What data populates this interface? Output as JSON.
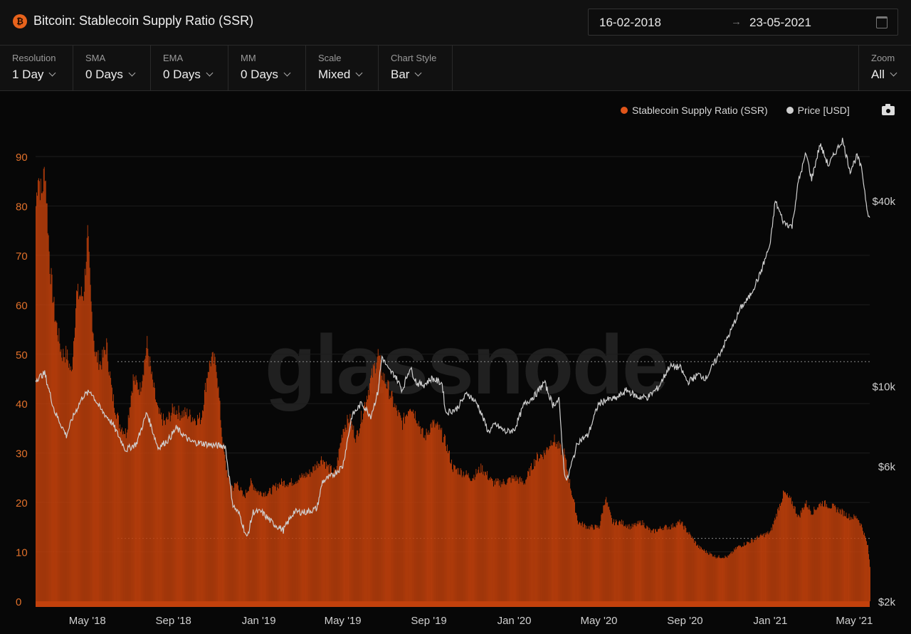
{
  "header": {
    "title": "Bitcoin: Stablecoin Supply Ratio (SSR)",
    "asset_icon": "bitcoin-icon",
    "date_from": "16-02-2018",
    "date_to": "23-05-2021"
  },
  "controls": [
    {
      "label": "Resolution",
      "value": "1 Day"
    },
    {
      "label": "SMA",
      "value": "0 Days"
    },
    {
      "label": "EMA",
      "value": "0 Days"
    },
    {
      "label": "MM",
      "value": "0 Days"
    },
    {
      "label": "Scale",
      "value": "Mixed"
    },
    {
      "label": "Chart Style",
      "value": "Bar"
    }
  ],
  "zoom": {
    "label": "Zoom",
    "value": "All"
  },
  "legend": {
    "ssr": "Stablecoin Supply Ratio (SSR)",
    "price": "Price [USD]"
  },
  "watermark": "glassnode",
  "colors": {
    "ssr": "#c2410c",
    "ssr_legend": "#e0551a",
    "price": "#cfcfcf",
    "left_axis": "#e0702a"
  },
  "chart_data": {
    "type": "bar",
    "x_ticks": [
      "May '18",
      "Sep '18",
      "Jan '19",
      "May '19",
      "Sep '19",
      "Jan '20",
      "May '20",
      "Sep '20",
      "Jan '21",
      "May '21"
    ],
    "left_axis": {
      "ticks": [
        "0",
        "10",
        "20",
        "30",
        "40",
        "50",
        "60",
        "70",
        "80",
        "90"
      ],
      "ylim": [
        0,
        90
      ]
    },
    "right_axis": {
      "ticks": [
        "$2k",
        "$6k",
        "$10k",
        "$40k"
      ],
      "scale": "log"
    },
    "series": [
      {
        "name": "Stablecoin Supply Ratio (SSR)",
        "style": "bar",
        "x": [
          "2018-02-16",
          "2018-02-19",
          "2018-02-24",
          "2018-03-01",
          "2018-03-08",
          "2018-03-15",
          "2018-03-25",
          "2018-04-01",
          "2018-04-08",
          "2018-04-15",
          "2018-04-25",
          "2018-05-01",
          "2018-05-06",
          "2018-05-12",
          "2018-05-20",
          "2018-05-28",
          "2018-06-05",
          "2018-06-15",
          "2018-06-25",
          "2018-07-05",
          "2018-07-15",
          "2018-07-25",
          "2018-08-01",
          "2018-08-10",
          "2018-08-20",
          "2018-09-01",
          "2018-09-10",
          "2018-09-20",
          "2018-10-01",
          "2018-10-10",
          "2018-10-20",
          "2018-10-25",
          "2018-11-01",
          "2018-11-10",
          "2018-11-15",
          "2018-11-20",
          "2018-11-25",
          "2018-12-01",
          "2018-12-10",
          "2018-12-20",
          "2019-01-01",
          "2019-01-15",
          "2019-02-01",
          "2019-02-15",
          "2019-03-01",
          "2019-03-15",
          "2019-04-01",
          "2019-04-10",
          "2019-04-20",
          "2019-05-01",
          "2019-05-10",
          "2019-05-20",
          "2019-06-01",
          "2019-06-10",
          "2019-06-20",
          "2019-06-26",
          "2019-07-05",
          "2019-07-15",
          "2019-07-25",
          "2019-08-05",
          "2019-08-15",
          "2019-08-25",
          "2019-09-05",
          "2019-09-15",
          "2019-09-25",
          "2019-10-05",
          "2019-10-20",
          "2019-11-01",
          "2019-11-15",
          "2019-12-01",
          "2019-12-15",
          "2020-01-01",
          "2020-01-15",
          "2020-02-01",
          "2020-02-13",
          "2020-02-25",
          "2020-03-05",
          "2020-03-12",
          "2020-03-20",
          "2020-04-01",
          "2020-04-15",
          "2020-05-01",
          "2020-05-10",
          "2020-05-20",
          "2020-06-01",
          "2020-06-15",
          "2020-07-01",
          "2020-07-15",
          "2020-08-01",
          "2020-08-10",
          "2020-08-25",
          "2020-09-05",
          "2020-09-20",
          "2020-10-01",
          "2020-10-15",
          "2020-11-01",
          "2020-11-15",
          "2020-12-01",
          "2020-12-15",
          "2021-01-01",
          "2021-01-08",
          "2021-01-20",
          "2021-02-01",
          "2021-02-10",
          "2021-02-20",
          "2021-03-01",
          "2021-03-15",
          "2021-04-01",
          "2021-04-14",
          "2021-04-25",
          "2021-05-05",
          "2021-05-12",
          "2021-05-20",
          "2021-05-23"
        ],
        "values": [
          80,
          87,
          82,
          88,
          68,
          58,
          50,
          50,
          46,
          62,
          62,
          74,
          60,
          50,
          48,
          52,
          42,
          36,
          34,
          45,
          43,
          52,
          45,
          38,
          36,
          39,
          38,
          38,
          37,
          37,
          47,
          49,
          48,
          32,
          27,
          24,
          23,
          24,
          21,
          24,
          22,
          22,
          24,
          24,
          25,
          26,
          29,
          27,
          26,
          35,
          37,
          33,
          40,
          45,
          50,
          46,
          43,
          39,
          36,
          40,
          37,
          33,
          36,
          35,
          32,
          27,
          26,
          25,
          27,
          24,
          24,
          25,
          24,
          29,
          30,
          33,
          31,
          30,
          24,
          16,
          15,
          15,
          21,
          16,
          16,
          15,
          16,
          14,
          15,
          15,
          16,
          14,
          11,
          10,
          9,
          9,
          11,
          12,
          13,
          14,
          17,
          22,
          20,
          17,
          20,
          18,
          20,
          19,
          18,
          17,
          17,
          15,
          11,
          7
        ]
      },
      {
        "name": "Price [USD]",
        "style": "line",
        "x": [
          "2018-02-16",
          "2018-03-01",
          "2018-03-15",
          "2018-04-01",
          "2018-04-10",
          "2018-04-25",
          "2018-05-06",
          "2018-05-20",
          "2018-06-05",
          "2018-06-25",
          "2018-07-10",
          "2018-07-25",
          "2018-08-10",
          "2018-08-25",
          "2018-09-05",
          "2018-09-25",
          "2018-10-15",
          "2018-11-01",
          "2018-11-14",
          "2018-11-20",
          "2018-11-25",
          "2018-12-05",
          "2018-12-15",
          "2018-12-24",
          "2019-01-05",
          "2019-01-20",
          "2019-02-05",
          "2019-02-20",
          "2019-03-10",
          "2019-03-25",
          "2019-04-02",
          "2019-04-15",
          "2019-05-01",
          "2019-05-14",
          "2019-05-28",
          "2019-06-10",
          "2019-06-20",
          "2019-06-26",
          "2019-07-05",
          "2019-07-15",
          "2019-07-25",
          "2019-08-05",
          "2019-08-15",
          "2019-08-25",
          "2019-09-05",
          "2019-09-20",
          "2019-09-25",
          "2019-10-10",
          "2019-10-26",
          "2019-11-10",
          "2019-11-25",
          "2019-12-05",
          "2019-12-20",
          "2020-01-01",
          "2020-01-15",
          "2020-02-01",
          "2020-02-13",
          "2020-02-25",
          "2020-03-05",
          "2020-03-12",
          "2020-03-16",
          "2020-04-01",
          "2020-04-15",
          "2020-04-30",
          "2020-05-10",
          "2020-05-25",
          "2020-06-10",
          "2020-06-25",
          "2020-07-10",
          "2020-07-25",
          "2020-08-10",
          "2020-08-25",
          "2020-09-05",
          "2020-09-20",
          "2020-10-01",
          "2020-10-21",
          "2020-11-05",
          "2020-11-20",
          "2020-12-01",
          "2020-12-17",
          "2021-01-01",
          "2021-01-08",
          "2021-01-20",
          "2021-02-01",
          "2021-02-10",
          "2021-02-21",
          "2021-03-01",
          "2021-03-13",
          "2021-03-25",
          "2021-04-05",
          "2021-04-14",
          "2021-04-25",
          "2021-05-05",
          "2021-05-12",
          "2021-05-19",
          "2021-05-23"
        ],
        "values": [
          10500,
          11000,
          8300,
          6900,
          7900,
          9300,
          9600,
          8400,
          7600,
          6200,
          6500,
          8200,
          6300,
          6700,
          7300,
          6600,
          6500,
          6400,
          6400,
          5000,
          4100,
          3800,
          3200,
          3900,
          3900,
          3600,
          3400,
          3900,
          3900,
          4000,
          4900,
          5100,
          5500,
          8000,
          8800,
          8000,
          9500,
          12500,
          11300,
          10800,
          9700,
          11500,
          10200,
          10100,
          10600,
          10200,
          8200,
          8400,
          9500,
          8700,
          7100,
          7500,
          7100,
          7200,
          8700,
          9400,
          10300,
          8700,
          9000,
          5400,
          4900,
          6600,
          6900,
          8700,
          9000,
          9100,
          9700,
          9200,
          9200,
          9900,
          11600,
          11500,
          10300,
          10900,
          10600,
          12800,
          15000,
          18000,
          19300,
          23000,
          29000,
          40000,
          34000,
          33000,
          46000,
          57000,
          47000,
          61000,
          52000,
          58000,
          63000,
          50000,
          56000,
          50000,
          38000,
          35000
        ]
      }
    ]
  }
}
